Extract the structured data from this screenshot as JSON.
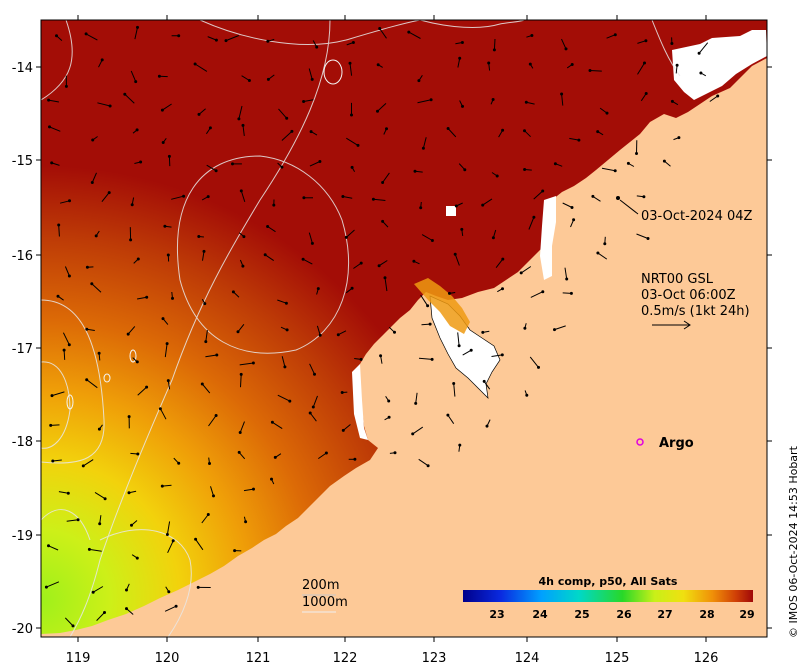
{
  "map": {
    "lon_range": [
      118.6,
      126.8
    ],
    "lat_range": [
      -20.1,
      -13.5
    ],
    "x_ticks": [
      "119",
      "120",
      "121",
      "122",
      "123",
      "124",
      "125",
      "126"
    ],
    "y_ticks": [
      "-14",
      "-15",
      "-16",
      "-17",
      "-18",
      "-19",
      "-20"
    ],
    "colors": {
      "land": "#fdc997",
      "hot": "#a30d06",
      "cool": "#b6ee12",
      "cloud": "#ffffff"
    }
  },
  "annotations": {
    "timestamp": "03-Oct-2024 04Z",
    "current_title": "NRT00 GSL",
    "current_time": "03-Oct 06:00Z",
    "current_scale": "0.5m/s (1kt 24h)",
    "argo_label": "Argo",
    "contour_200": "200m",
    "contour_1000": "1000m",
    "credit": "© IMOS 06-Oct-2024 14:53 Hobart"
  },
  "colorbar": {
    "title": "4h comp, p50, All Sats",
    "range": [
      22,
      29
    ],
    "ticks": [
      "23",
      "24",
      "25",
      "26",
      "27",
      "28",
      "29"
    ]
  }
}
